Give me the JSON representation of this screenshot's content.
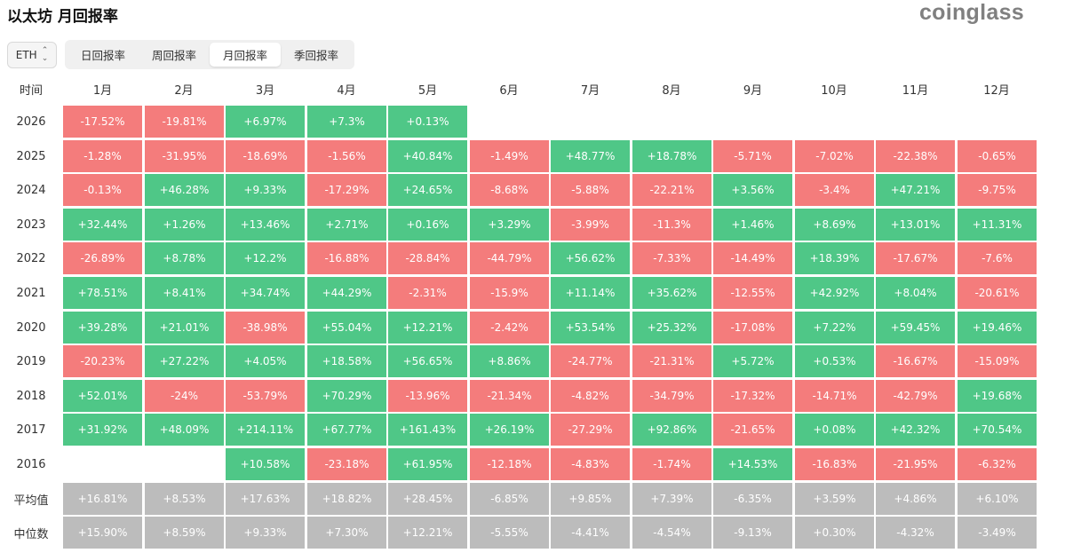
{
  "header": {
    "title": "以太坊 月回报率",
    "logo": "coinglass"
  },
  "asset_select": {
    "value": "ETH"
  },
  "tabs": [
    {
      "label": "日回报率",
      "active": false
    },
    {
      "label": "周回报率",
      "active": false
    },
    {
      "label": "月回报率",
      "active": true
    },
    {
      "label": "季回报率",
      "active": false
    }
  ],
  "colors": {
    "positive": "#4fc787",
    "negative": "#f47c7c",
    "summary": "#bcbcbc"
  },
  "table": {
    "corner_label": "时间",
    "months": [
      "1月",
      "2月",
      "3月",
      "4月",
      "5月",
      "6月",
      "7月",
      "8月",
      "9月",
      "10月",
      "11月",
      "12月"
    ],
    "rows": [
      {
        "label": "2026",
        "kind": "year",
        "values": [
          "-17.52%",
          "-19.81%",
          "+6.97%",
          "+7.3%",
          "+0.13%",
          "",
          "",
          "",
          "",
          "",
          "",
          ""
        ]
      },
      {
        "label": "2025",
        "kind": "year",
        "values": [
          "-1.28%",
          "-31.95%",
          "-18.69%",
          "-1.56%",
          "+40.84%",
          "-1.49%",
          "+48.77%",
          "+18.78%",
          "-5.71%",
          "-7.02%",
          "-22.38%",
          "-0.65%"
        ]
      },
      {
        "label": "2024",
        "kind": "year",
        "values": [
          "-0.13%",
          "+46.28%",
          "+9.33%",
          "-17.29%",
          "+24.65%",
          "-8.68%",
          "-5.88%",
          "-22.21%",
          "+3.56%",
          "-3.4%",
          "+47.21%",
          "-9.75%"
        ]
      },
      {
        "label": "2023",
        "kind": "year",
        "values": [
          "+32.44%",
          "+1.26%",
          "+13.46%",
          "+2.71%",
          "+0.16%",
          "+3.29%",
          "-3.99%",
          "-11.3%",
          "+1.46%",
          "+8.69%",
          "+13.01%",
          "+11.31%"
        ]
      },
      {
        "label": "2022",
        "kind": "year",
        "values": [
          "-26.89%",
          "+8.78%",
          "+12.2%",
          "-16.88%",
          "-28.84%",
          "-44.79%",
          "+56.62%",
          "-7.33%",
          "-14.49%",
          "+18.39%",
          "-17.67%",
          "-7.6%"
        ]
      },
      {
        "label": "2021",
        "kind": "year",
        "values": [
          "+78.51%",
          "+8.41%",
          "+34.74%",
          "+44.29%",
          "-2.31%",
          "-15.9%",
          "+11.14%",
          "+35.62%",
          "-12.55%",
          "+42.92%",
          "+8.04%",
          "-20.61%"
        ]
      },
      {
        "label": "2020",
        "kind": "year",
        "values": [
          "+39.28%",
          "+21.01%",
          "-38.98%",
          "+55.04%",
          "+12.21%",
          "-2.42%",
          "+53.54%",
          "+25.32%",
          "-17.08%",
          "+7.22%",
          "+59.45%",
          "+19.46%"
        ]
      },
      {
        "label": "2019",
        "kind": "year",
        "values": [
          "-20.23%",
          "+27.22%",
          "+4.05%",
          "+18.58%",
          "+56.65%",
          "+8.86%",
          "-24.77%",
          "-21.31%",
          "+5.72%",
          "+0.53%",
          "-16.67%",
          "-15.09%"
        ]
      },
      {
        "label": "2018",
        "kind": "year",
        "values": [
          "+52.01%",
          "-24%",
          "-53.79%",
          "+70.29%",
          "-13.96%",
          "-21.34%",
          "-4.82%",
          "-34.79%",
          "-17.32%",
          "-14.71%",
          "-42.79%",
          "+19.68%"
        ]
      },
      {
        "label": "2017",
        "kind": "year",
        "values": [
          "+31.92%",
          "+48.09%",
          "+214.11%",
          "+67.77%",
          "+161.43%",
          "+26.19%",
          "-27.29%",
          "+92.86%",
          "-21.65%",
          "+0.08%",
          "+42.32%",
          "+70.54%"
        ]
      },
      {
        "label": "2016",
        "kind": "year",
        "values": [
          "",
          "",
          "+10.58%",
          "-23.18%",
          "+61.95%",
          "-12.18%",
          "-4.83%",
          "-1.74%",
          "+14.53%",
          "-16.83%",
          "-21.95%",
          "-6.32%"
        ]
      },
      {
        "label": "平均值",
        "kind": "summary",
        "values": [
          "+16.81%",
          "+8.53%",
          "+17.63%",
          "+18.82%",
          "+28.45%",
          "-6.85%",
          "+9.85%",
          "+7.39%",
          "-6.35%",
          "+3.59%",
          "+4.86%",
          "+6.10%"
        ]
      },
      {
        "label": "中位数",
        "kind": "summary",
        "values": [
          "+15.90%",
          "+8.59%",
          "+9.33%",
          "+7.30%",
          "+12.21%",
          "-5.55%",
          "-4.41%",
          "-4.54%",
          "-9.13%",
          "+0.30%",
          "-4.32%",
          "-3.49%"
        ]
      }
    ]
  }
}
